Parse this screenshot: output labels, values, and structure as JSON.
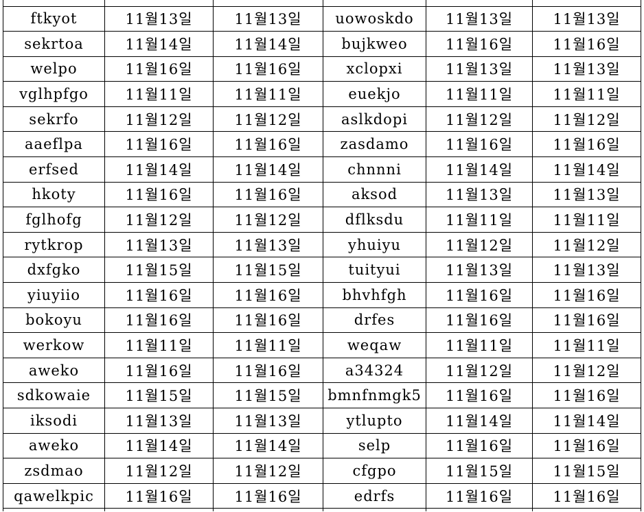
{
  "table": {
    "rows": [
      [
        "ftkyot",
        "11월13일",
        "11월13일",
        "uowoskdo",
        "11월13일",
        "11월13일"
      ],
      [
        "sekrtoa",
        "11월14일",
        "11월14일",
        "bujkweo",
        "11월16일",
        "11월16일"
      ],
      [
        "welpo",
        "11월16일",
        "11월16일",
        "xclopxi",
        "11월13일",
        "11월13일"
      ],
      [
        "vglhpfgo",
        "11월11일",
        "11월11일",
        "euekjo",
        "11월11일",
        "11월11일"
      ],
      [
        "sekrfo",
        "11월12일",
        "11월12일",
        "aslkdopi",
        "11월12일",
        "11월12일"
      ],
      [
        "aaeflpa",
        "11월16일",
        "11월16일",
        "zasdamo",
        "11월16일",
        "11월16일"
      ],
      [
        "erfsed",
        "11월14일",
        "11월14일",
        "chnnni",
        "11월14일",
        "11월14일"
      ],
      [
        "hkoty",
        "11월16일",
        "11월16일",
        "aksod",
        "11월13일",
        "11월13일"
      ],
      [
        "fglhofg",
        "11월12일",
        "11월12일",
        "dflksdu",
        "11월11일",
        "11월11일"
      ],
      [
        "rytkrop",
        "11월13일",
        "11월13일",
        "yhuiyu",
        "11월12일",
        "11월12일"
      ],
      [
        "dxfgko",
        "11월15일",
        "11월15일",
        "tuityui",
        "11월13일",
        "11월13일"
      ],
      [
        "yiuyiio",
        "11월16일",
        "11월16일",
        "bhvhfgh",
        "11월16일",
        "11월16일"
      ],
      [
        "bokoyu",
        "11월16일",
        "11월16일",
        "drfes",
        "11월16일",
        "11월16일"
      ],
      [
        "werkow",
        "11월11일",
        "11월11일",
        "weqaw",
        "11월11일",
        "11월11일"
      ],
      [
        "aweko",
        "11월16일",
        "11월16일",
        "a34324",
        "11월12일",
        "11월12일"
      ],
      [
        "sdkowaie",
        "11월15일",
        "11월15일",
        "bmnfnmgk5",
        "11월16일",
        "11월16일"
      ],
      [
        "iksodi",
        "11월13일",
        "11월13일",
        "ytlupto",
        "11월14일",
        "11월14일"
      ],
      [
        "aweko",
        "11월14일",
        "11월14일",
        "selp",
        "11월16일",
        "11월16일"
      ],
      [
        "zsdmao",
        "11월12일",
        "11월12일",
        "cfgpo",
        "11월15일",
        "11월15일"
      ],
      [
        "qawelkpic",
        "11월16일",
        "11월16일",
        "edrfs",
        "11월16일",
        "11월16일"
      ]
    ]
  },
  "colors": {
    "background": "#ffffff",
    "text": "#000000",
    "border": "#000000"
  }
}
